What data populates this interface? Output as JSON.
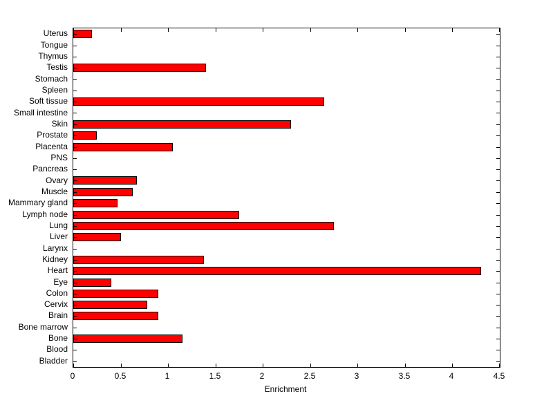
{
  "chart_data": {
    "type": "bar",
    "orientation": "horizontal",
    "title": "",
    "xlabel": "Enrichment",
    "ylabel": "",
    "xlim": [
      0,
      4.5
    ],
    "xticks": [
      0,
      0.5,
      1,
      1.5,
      2,
      2.5,
      3,
      3.5,
      4,
      4.5
    ],
    "xtick_labels": [
      "0",
      "0.5",
      "1",
      "1.5",
      "2",
      "2.5",
      "3",
      "3.5",
      "4",
      "4.5"
    ],
    "grid": "off",
    "legend": "none",
    "bar_color": "#ff0000",
    "bar_edge_color": "#000000",
    "background_color": "#ffffff",
    "categories": [
      "Uterus",
      "Tongue",
      "Thymus",
      "Testis",
      "Stomach",
      "Spleen",
      "Soft tissue",
      "Small intestine",
      "Skin",
      "Prostate",
      "Placenta",
      "PNS",
      "Pancreas",
      "Ovary",
      "Muscle",
      "Mammary gland",
      "Lymph node",
      "Lung",
      "Liver",
      "Larynx",
      "Kidney",
      "Heart",
      "Eye",
      "Colon",
      "Cervix",
      "Brain",
      "Bone marrow",
      "Bone",
      "Blood",
      "Bladder"
    ],
    "values": [
      0.2,
      0,
      0,
      1.4,
      0,
      0,
      2.65,
      0,
      2.3,
      0.25,
      1.05,
      0,
      0,
      0.67,
      0.63,
      0.47,
      1.75,
      2.75,
      0.5,
      0,
      1.38,
      4.3,
      0.4,
      0.9,
      0.78,
      0.9,
      0,
      1.15,
      0,
      0
    ]
  }
}
